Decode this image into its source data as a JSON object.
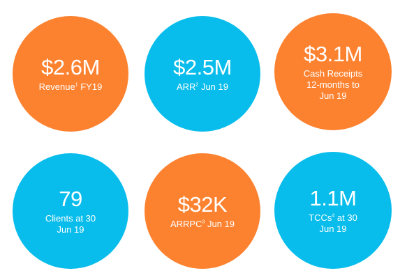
{
  "colors": {
    "orange": "#FC8230",
    "blue": "#08BDEB",
    "text": "#FFFFFF"
  },
  "metrics": [
    {
      "value": "$2.6M",
      "label_pre": "Revenue",
      "sup": "1",
      "label_post": " FY19",
      "color": "orange"
    },
    {
      "value": "$2.5M",
      "label_pre": "ARR",
      "sup": "2",
      "label_post": " Jun 19",
      "color": "blue"
    },
    {
      "value": "$3.1M",
      "label_pre": "Cash Receipts 12-months to Jun 19",
      "sup": "",
      "label_post": "",
      "color": "orange"
    },
    {
      "value": "79",
      "label_pre": "Clients at 30 Jun 19",
      "sup": "",
      "label_post": "",
      "color": "blue"
    },
    {
      "value": "$32K",
      "label_pre": "ARRPC",
      "sup": "3",
      "label_post": " Jun 19",
      "color": "orange"
    },
    {
      "value": "1.1M",
      "label_pre": "TCCs",
      "sup": "4",
      "label_post": " at 30 Jun 19",
      "color": "blue"
    }
  ]
}
